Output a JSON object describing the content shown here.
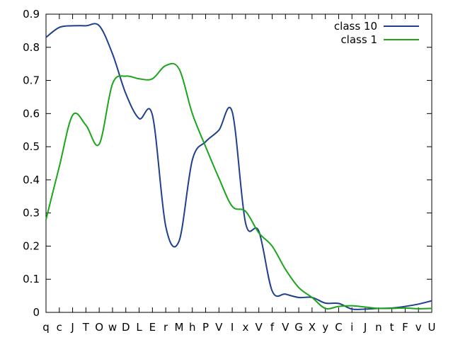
{
  "chart_data": {
    "type": "line",
    "title": "",
    "xlabel": "",
    "ylabel": "",
    "categories": [
      "q",
      "c",
      "J",
      "T",
      "O",
      "w",
      "D",
      "L",
      "E",
      "r",
      "M",
      "h",
      "P",
      "V",
      "I",
      "x",
      "V",
      "f",
      "V",
      "G",
      "X",
      "y",
      "C",
      "i",
      "J",
      "n",
      "t",
      "F",
      "v",
      "U"
    ],
    "ylim": [
      0,
      0.9
    ],
    "yticks": [
      0,
      0.1,
      0.2,
      0.3,
      0.4,
      0.5,
      0.6,
      0.7,
      0.8,
      0.9
    ],
    "ytick_labels": [
      "0",
      "0.1",
      "0.2",
      "0.3",
      "0.4",
      "0.5",
      "0.6",
      "0.7",
      "0.8",
      "0.9"
    ],
    "grid": false,
    "legend_position": "top-right",
    "series": [
      {
        "name": "class 10",
        "color": "#1f3f8f",
        "values": [
          0.83,
          0.86,
          0.865,
          0.865,
          0.865,
          0.78,
          0.66,
          0.585,
          0.595,
          0.26,
          0.215,
          0.46,
          0.515,
          0.55,
          0.605,
          0.27,
          0.245,
          0.065,
          0.055,
          0.045,
          0.045,
          0.028,
          0.027,
          0.01,
          0.01,
          0.012,
          0.013,
          0.018,
          0.025,
          0.035
        ]
      },
      {
        "name": "class 1",
        "color": "#1aa51a",
        "values": [
          0.28,
          0.44,
          0.595,
          0.565,
          0.508,
          0.69,
          0.713,
          0.705,
          0.705,
          0.745,
          0.735,
          0.6,
          0.5,
          0.405,
          0.32,
          0.305,
          0.24,
          0.2,
          0.13,
          0.075,
          0.045,
          0.012,
          0.018,
          0.02,
          0.016,
          0.012,
          0.012,
          0.013,
          0.011,
          0.012
        ]
      }
    ]
  }
}
